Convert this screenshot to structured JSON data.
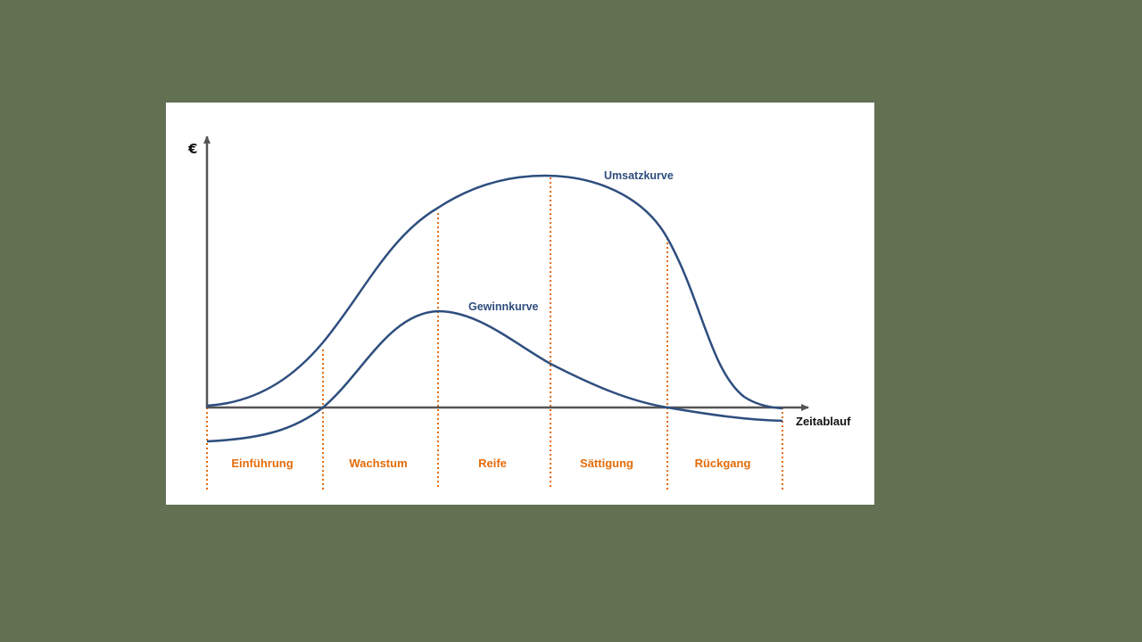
{
  "colors": {
    "slide_background": "#637153",
    "panel_background": "#ffffff",
    "curve_color": "#2e4e7e",
    "phase_color": "#e46c0a",
    "axis_color": "#555555"
  },
  "diagram": {
    "y_axis_label": "€",
    "x_axis_label": "Zeitablauf",
    "curves": {
      "revenue_label": "Umsatzkurve",
      "profit_label": "Gewinnkurve"
    },
    "phases": [
      "Einführung",
      "Wachstum",
      "Reife",
      "Sättigung",
      "Rückgang"
    ]
  }
}
